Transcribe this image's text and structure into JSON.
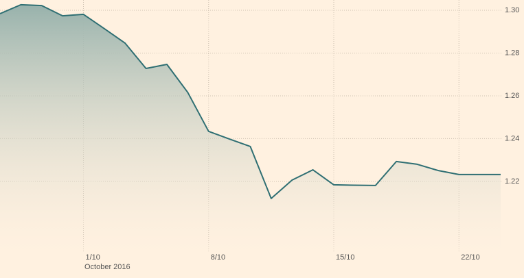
{
  "chart_data": {
    "type": "line",
    "x": [
      0,
      1,
      2,
      3,
      4,
      5,
      6,
      7,
      8,
      9,
      10,
      11,
      12,
      13,
      14,
      15,
      16,
      17,
      18,
      19,
      20,
      21,
      22,
      23,
      24
    ],
    "series": [
      {
        "color": "#2f6f73",
        "values": [
          1.2984,
          1.3026,
          1.3022,
          1.2974,
          1.2981,
          1.2914,
          1.2846,
          1.2728,
          1.2747,
          1.2616,
          1.2434,
          1.2398,
          1.2363,
          1.212,
          1.2206,
          1.2254,
          1.2184,
          1.2182,
          1.2181,
          1.2293,
          1.228,
          1.2251,
          1.2232,
          1.2232,
          1.2232
        ]
      }
    ],
    "xlim": [
      0,
      24
    ],
    "xticks": [
      {
        "value": 4,
        "label": "1/10"
      },
      {
        "value": 10,
        "label": "8/10"
      },
      {
        "value": 16,
        "label": "15/10"
      },
      {
        "value": 22,
        "label": "22/10"
      }
    ],
    "x_annotation": "October 2016",
    "ylim": [
      1.187,
      1.3048
    ],
    "yticks": [
      1.22,
      1.24,
      1.26,
      1.28,
      {
        "value": 1.3,
        "label": "1.30"
      }
    ],
    "grid": true,
    "area": true
  }
}
